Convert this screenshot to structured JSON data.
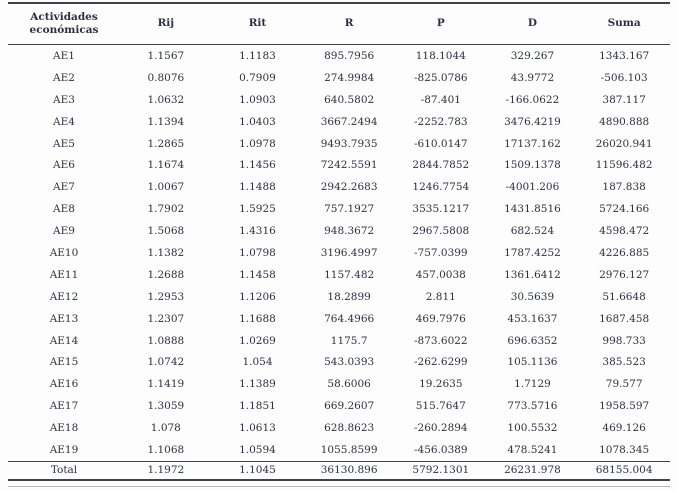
{
  "table": {
    "headers": [
      "Actividades económicas",
      "Rij",
      "Rit",
      "R",
      "P",
      "D",
      "Suma"
    ],
    "rows": [
      [
        "AE1",
        "1.1567",
        "1.1183",
        "895.7956",
        "118.1044",
        "329.267",
        "1343.167"
      ],
      [
        "AE2",
        "0.8076",
        "0.7909",
        "274.9984",
        "-825.0786",
        "43.9772",
        "-506.103"
      ],
      [
        "AE3",
        "1.0632",
        "1.0903",
        "640.5802",
        "-87.401",
        "-166.0622",
        "387.117"
      ],
      [
        "AE4",
        "1.1394",
        "1.0403",
        "3667.2494",
        "-2252.783",
        "3476.4219",
        "4890.888"
      ],
      [
        "AE5",
        "1.2865",
        "1.0978",
        "9493.7935",
        "-610.0147",
        "17137.162",
        "26020.941"
      ],
      [
        "AE6",
        "1.1674",
        "1.1456",
        "7242.5591",
        "2844.7852",
        "1509.1378",
        "11596.482"
      ],
      [
        "AE7",
        "1.0067",
        "1.1488",
        "2942.2683",
        "1246.7754",
        "-4001.206",
        "187.838"
      ],
      [
        "AE8",
        "1.7902",
        "1.5925",
        "757.1927",
        "3535.1217",
        "1431.8516",
        "5724.166"
      ],
      [
        "AE9",
        "1.5068",
        "1.4316",
        "948.3672",
        "2967.5808",
        "682.524",
        "4598.472"
      ],
      [
        "AE10",
        "1.1382",
        "1.0798",
        "3196.4997",
        "-757.0399",
        "1787.4252",
        "4226.885"
      ],
      [
        "AE11",
        "1.2688",
        "1.1458",
        "1157.482",
        "457.0038",
        "1361.6412",
        "2976.127"
      ],
      [
        "AE12",
        "1.2953",
        "1.1206",
        "18.2899",
        "2.811",
        "30.5639",
        "51.6648"
      ],
      [
        "AE13",
        "1.2307",
        "1.1688",
        "764.4966",
        "469.7976",
        "453.1637",
        "1687.458"
      ],
      [
        "AE14",
        "1.0888",
        "1.0269",
        "1175.7",
        "-873.6022",
        "696.6352",
        "998.733"
      ],
      [
        "AE15",
        "1.0742",
        "1.054",
        "543.0393",
        "-262.6299",
        "105.1136",
        "385.523"
      ],
      [
        "AE16",
        "1.1419",
        "1.1389",
        "58.6006",
        "19.2635",
        "1.7129",
        "79.577"
      ],
      [
        "AE17",
        "1.3059",
        "1.1851",
        "669.2607",
        "515.7647",
        "773.5716",
        "1958.597"
      ],
      [
        "AE18",
        "1.078",
        "1.0613",
        "628.8623",
        "-260.2894",
        "100.5532",
        "469.126"
      ],
      [
        "AE19",
        "1.1068",
        "1.0594",
        "1055.8599",
        "-456.0389",
        "478.5241",
        "1078.345"
      ]
    ],
    "total_row": [
      "Total",
      "1.1972",
      "1.1045",
      "36130.896",
      "5792.1301",
      "26231.978",
      "68155.004"
    ]
  },
  "colors": {
    "text": "#2d3040",
    "rule_dark": "#3f414b",
    "rule_light": "#b5b5b5",
    "background": "#fdfdfd"
  }
}
